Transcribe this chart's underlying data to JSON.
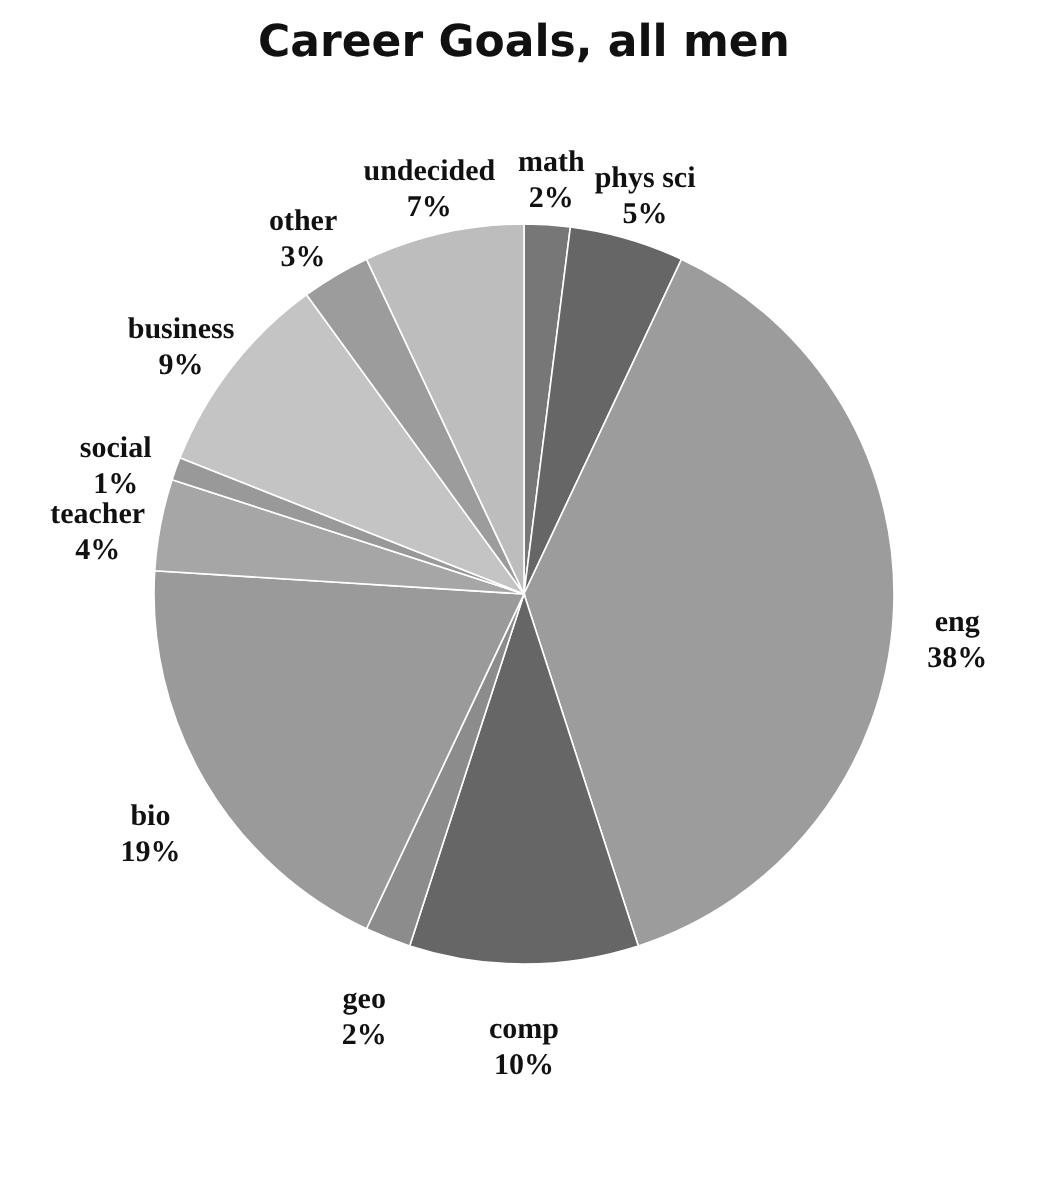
{
  "chart_data": {
    "type": "pie",
    "title": "Career Goals, all men",
    "categories": [
      "math",
      "phys sci",
      "eng",
      "comp",
      "geo",
      "bio",
      "teacher",
      "social",
      "business",
      "other",
      "undecided"
    ],
    "values": [
      2,
      5,
      38,
      10,
      2,
      19,
      4,
      1,
      9,
      3,
      7
    ],
    "value_labels": [
      "2%",
      "5%",
      "38%",
      "10%",
      "2%",
      "19%",
      "4%",
      "1%",
      "9%",
      "3%",
      "7%"
    ],
    "colors": [
      "#777777",
      "#666666",
      "#9c9c9c",
      "#666666",
      "#8c8c8c",
      "#9a9a9a",
      "#a6a6a6",
      "#999999",
      "#c4c4c4",
      "#9c9c9c",
      "#bdbdbd"
    ]
  }
}
